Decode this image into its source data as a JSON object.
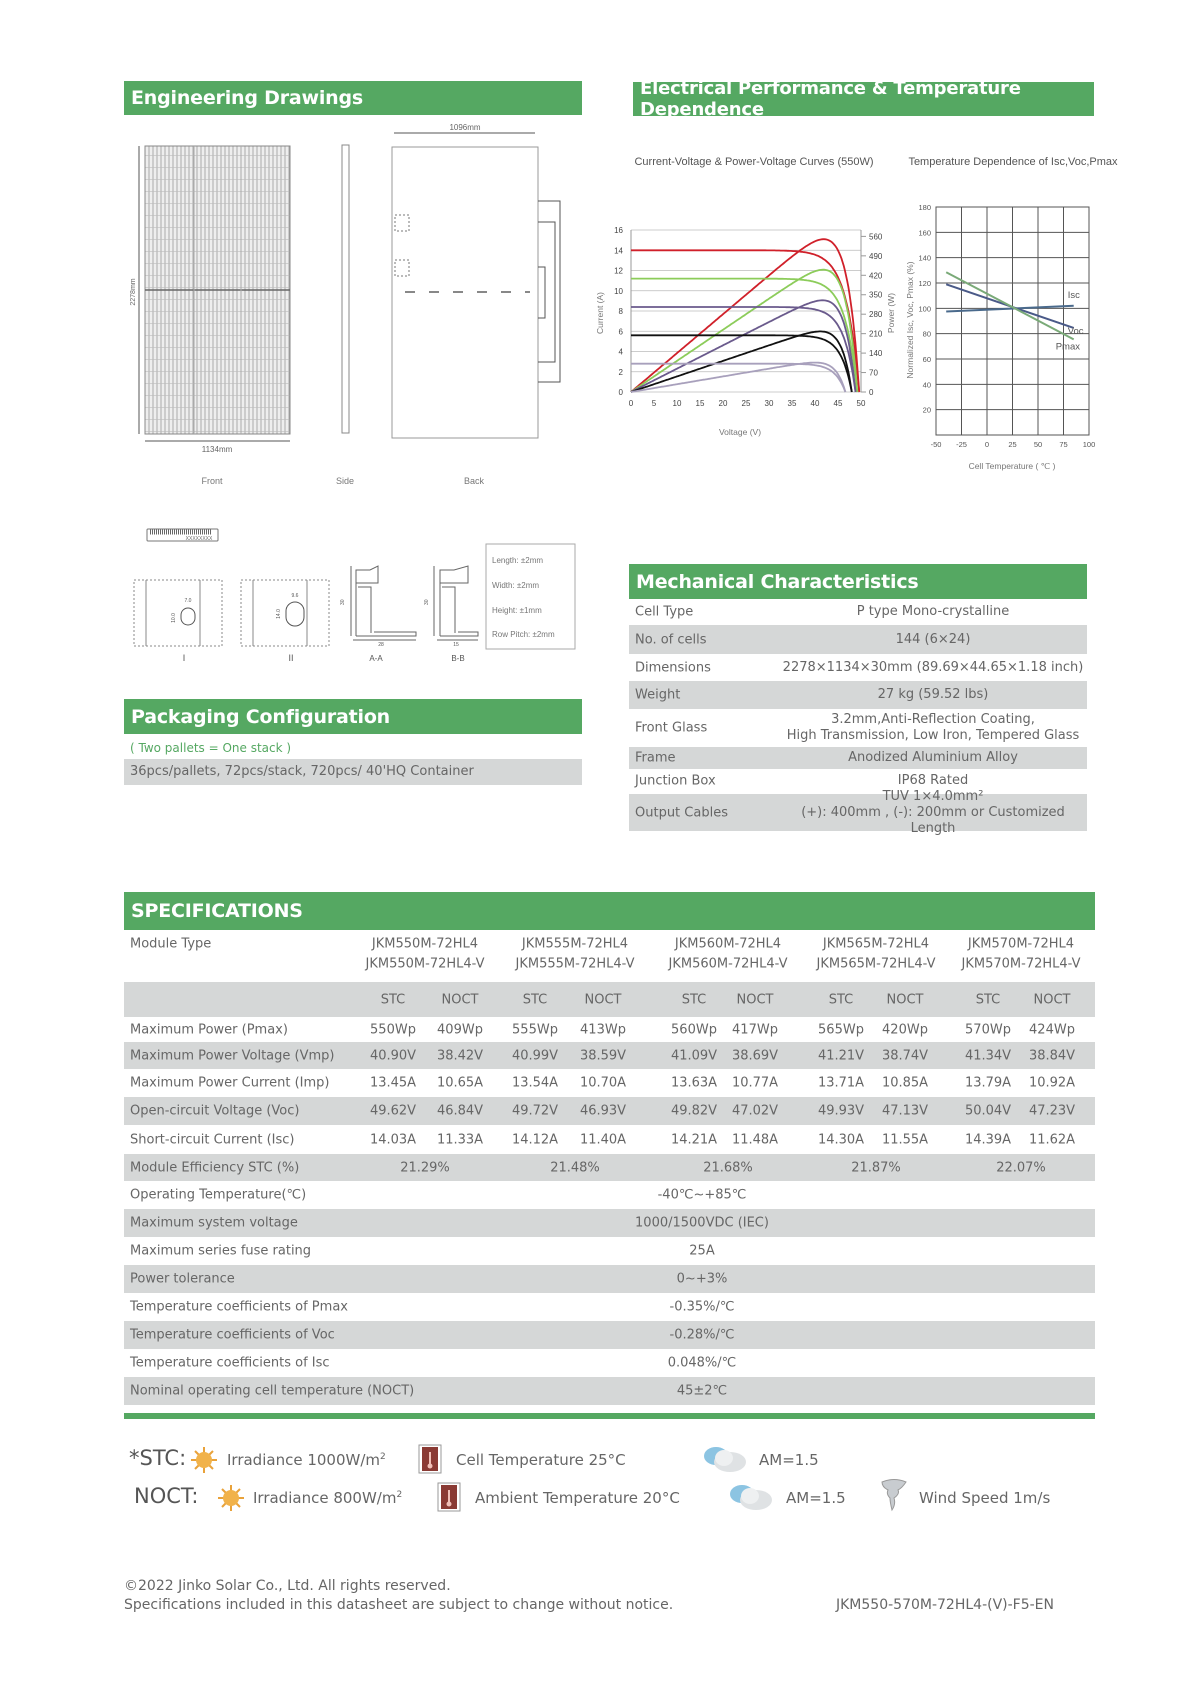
{
  "engineering": {
    "title": "Engineering Drawings",
    "dim_width_back": "1096mm",
    "dim_width_front": "1134mm",
    "dim_height": "2278mm",
    "views": [
      "Front",
      "Side",
      "Back"
    ],
    "sections": {
      "I": "I",
      "II": "II",
      "AA": "A-A",
      "BB": "B-B",
      "i_w": "7.0",
      "i_h": "10.0",
      "ii_w": "9.6",
      "ii_h": "14.0",
      "aa_w": "28",
      "bb_w": "15",
      "aa_h": "30",
      "bb_h": "30",
      "barcode": "XXXXXXXX"
    },
    "tolerances": [
      "Length: ±2mm",
      "Width: ±2mm",
      "Height: ±1mm",
      "Row Pitch: ±2mm"
    ]
  },
  "packaging": {
    "title": "Packaging Configuration",
    "note": "( Two pallets = One stack )",
    "value": "36pcs/pallets, 72pcs/stack, 720pcs/ 40'HQ Container"
  },
  "electrical": {
    "title": "Electrical Performance & Temperature Dependence"
  },
  "chart_data": [
    {
      "type": "line",
      "title": "Current-Voltage & Power-Voltage Curves (550W)",
      "xlabel": "Voltage (V)",
      "ylabel": "Current (A)",
      "y2label": "Power (W)",
      "xlim": [
        0,
        50
      ],
      "ylim": [
        0,
        16
      ],
      "y2lim": [
        0,
        583
      ],
      "xticks": [
        0,
        5,
        10,
        15,
        20,
        25,
        30,
        35,
        40,
        45,
        50
      ],
      "yticks": [
        0,
        2,
        4,
        6,
        8,
        10,
        12,
        14,
        16
      ],
      "y2ticks": [
        0,
        70,
        140,
        210,
        280,
        350,
        420,
        490,
        560
      ],
      "grid": true,
      "series": [
        {
          "color": "#d0202a",
          "isc": 14.0,
          "voc": 49.6,
          "pmax": 550
        },
        {
          "color": "#8ccc5a",
          "isc": 11.2,
          "voc": 49.2,
          "pmax": 440
        },
        {
          "color": "#6a5a8c",
          "isc": 8.4,
          "voc": 48.8,
          "pmax": 330
        },
        {
          "color": "#111111",
          "isc": 5.6,
          "voc": 48.0,
          "pmax": 218
        },
        {
          "color": "#a8a0bc",
          "isc": 2.8,
          "voc": 46.6,
          "pmax": 106
        }
      ]
    },
    {
      "type": "line",
      "title": "Temperature Dependence of Isc,Voc,Pmax",
      "xlabel": "Cell Temperature ( ℃ )",
      "ylabel": "Normalized Isc, Voc, Pmax (%)",
      "xlim": [
        -50,
        100
      ],
      "ylim": [
        0,
        180
      ],
      "xticks": [
        -50,
        -25,
        0,
        25,
        50,
        75,
        100
      ],
      "yticks": [
        20,
        40,
        60,
        80,
        100,
        120,
        140,
        160,
        180
      ],
      "grid": true,
      "series": [
        {
          "name": "Isc",
          "color": "#4a6a8c",
          "x": [
            -40,
            85
          ],
          "y": [
            97.5,
            102
          ]
        },
        {
          "name": "Voc",
          "color": "#4a5a88",
          "x": [
            -40,
            85
          ],
          "y": [
            119,
            84.5
          ]
        },
        {
          "name": "Pmax",
          "color": "#7aaa78",
          "x": [
            -40,
            85
          ],
          "y": [
            128.5,
            75.5
          ]
        }
      ]
    }
  ],
  "mechanical": {
    "title": "Mechanical Characteristics",
    "rows": [
      {
        "label": "Cell  Type",
        "value": "P type Mono-crystalline"
      },
      {
        "label": "No. of cells",
        "value": "144 (6×24)"
      },
      {
        "label": "Dimensions",
        "value": "2278×1134×30mm (89.69×44.65×1.18 inch)"
      },
      {
        "label": "Weight",
        "value": "27 kg (59.52 lbs)"
      },
      {
        "label": "Front Glass",
        "value": "3.2mm,Anti-Reflection Coating,",
        "value2": "High Transmission, Low Iron, Tempered Glass"
      },
      {
        "label": "Frame",
        "value": "Anodized Aluminium Alloy"
      },
      {
        "label": "Junction Box",
        "value": "IP68 Rated"
      },
      {
        "label": "Output Cables",
        "value": "TUV  1×4.0mm²",
        "value2": "(+): 400mm , (-): 200mm or Customized Length"
      }
    ]
  },
  "specifications": {
    "title": "SPECIFICATIONS",
    "module_type_label": "Module Type",
    "models": [
      {
        "top": "JKM550M-72HL4",
        "bottom": "JKM550M-72HL4-V"
      },
      {
        "top": "JKM555M-72HL4",
        "bottom": "JKM555M-72HL4-V"
      },
      {
        "top": "JKM560M-72HL4",
        "bottom": "JKM560M-72HL4-V"
      },
      {
        "top": "JKM565M-72HL4",
        "bottom": "JKM565M-72HL4-V"
      },
      {
        "top": "JKM570M-72HL4",
        "bottom": "JKM570M-72HL4-V"
      }
    ],
    "stc_label": "STC",
    "noct_label": "NOCT",
    "rows": [
      {
        "label": "Maximum Power (Pmax)",
        "values": [
          "550Wp",
          "409Wp",
          "555Wp",
          "413Wp",
          "560Wp",
          "417Wp",
          "565Wp",
          "420Wp",
          "570Wp",
          "424Wp"
        ]
      },
      {
        "label": "Maximum Power Voltage (Vmp)",
        "values": [
          "40.90V",
          "38.42V",
          "40.99V",
          "38.59V",
          "41.09V",
          "38.69V",
          "41.21V",
          "38.74V",
          "41.34V",
          "38.84V"
        ]
      },
      {
        "label": "Maximum Power Current (Imp)",
        "values": [
          "13.45A",
          "10.65A",
          "13.54A",
          "10.70A",
          "13.63A",
          "10.77A",
          "13.71A",
          "10.85A",
          "13.79A",
          "10.92A"
        ]
      },
      {
        "label": "Open-circuit Voltage (Voc)",
        "values": [
          "49.62V",
          "46.84V",
          "49.72V",
          "46.93V",
          "49.82V",
          "47.02V",
          "49.93V",
          "47.13V",
          "50.04V",
          "47.23V"
        ]
      },
      {
        "label": "Short-circuit Current (Isc)",
        "values": [
          "14.03A",
          "11.33A",
          "14.12A",
          "11.40A",
          "14.21A",
          "11.48A",
          "14.30A",
          "11.55A",
          "14.39A",
          "11.62A"
        ]
      }
    ],
    "efficiency": {
      "label": "Module Efficiency STC (%)",
      "values": [
        "21.29%",
        "21.48%",
        "21.68%",
        "21.87%",
        "22.07%"
      ]
    },
    "common_rows": [
      {
        "label": "Operating Temperature(℃)",
        "value": "-40℃~+85℃"
      },
      {
        "label": "Maximum system voltage",
        "value": "1000/1500VDC (IEC)"
      },
      {
        "label": "Maximum series fuse rating",
        "value": "25A"
      },
      {
        "label": "Power tolerance",
        "value": "0~+3%"
      },
      {
        "label": "Temperature coefficients of Pmax",
        "value": "-0.35%/℃"
      },
      {
        "label": "Temperature coefficients of Voc",
        "value": "-0.28%/℃"
      },
      {
        "label": "Temperature coefficients of Isc",
        "value": "0.048%/℃"
      },
      {
        "label": "Nominal operating cell temperature  (NOCT)",
        "value": "45±2℃"
      }
    ]
  },
  "conditions": {
    "stc": {
      "label": "*STC:",
      "irradiance": "Irradiance 1000W/m",
      "cell_temp": "Cell Temperature 25°C",
      "am": "AM=1.5",
      "icons": [
        "sun-icon",
        "thermometer-icon",
        "cloud-icon"
      ]
    },
    "noct": {
      "label": "NOCT:",
      "irradiance": "Irradiance 800W/m",
      "ambient_temp": "Ambient Temperature 20°C",
      "am": "AM=1.5",
      "wind": "Wind Speed 1m/s",
      "icons": [
        "sun-icon",
        "thermometer-icon",
        "cloud-icon",
        "wind-icon"
      ]
    },
    "sup": "2"
  },
  "footer": {
    "copyright": "©2022 Jinko Solar Co., Ltd. All rights reserved.",
    "disclaimer": "Specifications included in this datasheet are subject to change without notice.",
    "doc_code": "JKM550-570M-72HL4-(V)-F5-EN"
  },
  "colors": {
    "green": "#55a862",
    "grey_row": "#d5d7d7"
  }
}
